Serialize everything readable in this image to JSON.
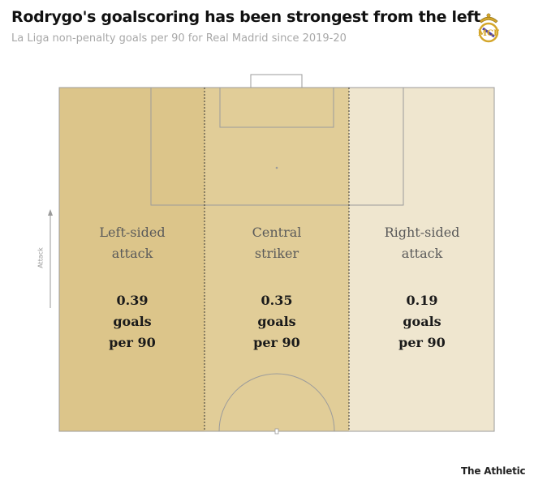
{
  "title": "Rodrygo's goalscoring has been strongest from the left",
  "subtitle": "La Liga non-penalty goals per 90 for Real Madrid since 2019-20",
  "attack_label": "Attack",
  "footer": "The Athletic",
  "colors": {
    "left_zone": "#dcc58a",
    "central_zone": "#e1cd98",
    "right_zone": "#efe6cf",
    "pitch_lines": "#9b9b9b"
  },
  "chart_data": {
    "type": "table",
    "title": "Rodrygo's goalscoring has been strongest from the left",
    "subtitle": "La Liga non-penalty goals per 90 for Real Madrid since 2019-20",
    "categories": [
      "Left-sided attack",
      "Central striker",
      "Right-sided attack"
    ],
    "values": [
      0.39,
      0.35,
      0.19
    ],
    "unit": "goals per 90",
    "zones": [
      {
        "name_line1": "Left-sided",
        "name_line2": "attack",
        "value": "0.39",
        "unit_line1": "goals",
        "unit_line2": "per 90"
      },
      {
        "name_line1": "Central",
        "name_line2": "striker",
        "value": "0.35",
        "unit_line1": "goals",
        "unit_line2": "per 90"
      },
      {
        "name_line1": "Right-sided",
        "name_line2": "attack",
        "value": "0.19",
        "unit_line1": "goals",
        "unit_line2": "per 90"
      }
    ]
  }
}
